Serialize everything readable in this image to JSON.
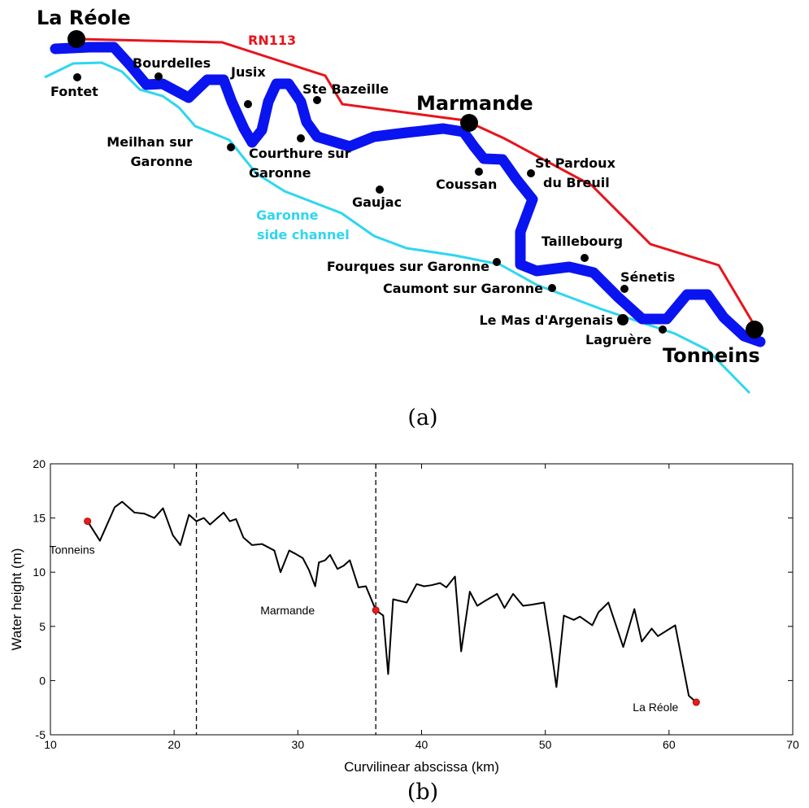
{
  "map": {
    "places": [
      {
        "label": [
          "La Réole"
        ]
      },
      {
        "label": [
          "Fontet"
        ]
      },
      {
        "label": [
          "Bourdelles"
        ]
      },
      {
        "label": [
          "Jusix"
        ]
      },
      {
        "label": [
          "Ste Bazeille"
        ]
      },
      {
        "label": [
          "Marmande"
        ]
      },
      {
        "label": [
          "Meilhan sur",
          "Garonne"
        ]
      },
      {
        "label": [
          "Courthure sur",
          "Garonne"
        ]
      },
      {
        "label": [
          "Gaujac"
        ]
      },
      {
        "label": [
          "Coussan"
        ]
      },
      {
        "label": [
          "St Pardoux",
          "du Breuil"
        ]
      },
      {
        "label": [
          "Taillebourg"
        ]
      },
      {
        "label": [
          "Sénetis"
        ]
      },
      {
        "label": [
          "Fourques sur Garonne"
        ]
      },
      {
        "label": [
          "Caumont sur Garonne"
        ]
      },
      {
        "label": [
          "Le Mas d'Argenais"
        ]
      },
      {
        "label": [
          "Lagruère"
        ]
      },
      {
        "label": [
          "Tonneins"
        ]
      }
    ],
    "road_label": "RN113",
    "channel_label": [
      "Garonne",
      "side channel"
    ]
  },
  "captions": [
    "(a)",
    "(b)"
  ],
  "chart_data": {
    "type": "line",
    "x_label": "Curvilinear abscissa (km)",
    "y_label": "Water height (m)",
    "xlim": [
      10,
      70
    ],
    "ylim": [
      -5,
      20
    ],
    "xticks": [
      10,
      20,
      30,
      40,
      50,
      60,
      70
    ],
    "yticks": [
      -5,
      0,
      5,
      10,
      15,
      20
    ],
    "x": [
      13.0,
      14.0,
      15.2,
      15.8,
      16.8,
      17.6,
      18.4,
      19.1,
      19.9,
      20.5,
      21.2,
      21.8,
      22.4,
      22.9,
      23.4,
      24.0,
      24.5,
      25.0,
      25.6,
      26.3,
      27.1,
      27.6,
      28.1,
      28.6,
      29.3,
      29.8,
      30.4,
      30.9,
      31.4,
      31.7,
      32.2,
      32.6,
      33.2,
      33.7,
      34.2,
      34.9,
      35.5,
      36.3,
      36.9,
      37.3,
      37.7,
      38.8,
      39.6,
      40.2,
      40.8,
      41.5,
      42.0,
      42.7,
      43.2,
      43.9,
      44.5,
      45.2,
      46.1,
      46.7,
      47.4,
      48.2,
      48.9,
      49.9,
      50.4,
      50.9,
      51.5,
      52.3,
      52.8,
      53.8,
      54.3,
      55.1,
      56.3,
      57.2,
      57.8,
      58.6,
      59.1,
      60.5,
      61.6,
      62.2
    ],
    "series": [
      {
        "color": "#000000",
        "values": [
          14.7,
          12.9,
          16.0,
          16.5,
          15.5,
          15.4,
          15.0,
          15.9,
          13.4,
          12.5,
          15.3,
          14.7,
          15.0,
          14.4,
          14.9,
          15.5,
          14.7,
          14.9,
          13.2,
          12.5,
          12.6,
          12.3,
          12.0,
          10.0,
          12.0,
          11.7,
          11.3,
          10.2,
          8.7,
          10.9,
          11.1,
          11.6,
          10.3,
          10.6,
          11.1,
          8.6,
          8.7,
          6.5,
          6.0,
          0.6,
          7.5,
          7.2,
          8.9,
          8.7,
          8.8,
          9.0,
          8.6,
          9.6,
          2.7,
          8.2,
          6.9,
          7.4,
          8.0,
          6.7,
          8.0,
          6.9,
          7.0,
          7.2,
          3.5,
          -0.6,
          6.0,
          5.6,
          5.9,
          5.1,
          6.3,
          7.2,
          3.1,
          6.6,
          3.6,
          4.8,
          4.1,
          5.1,
          -1.4,
          -2.0
        ]
      }
    ],
    "vlines": [
      21.8,
      36.3
    ],
    "highlight": {
      "x": [
        13.0,
        36.3,
        62.2
      ],
      "y": [
        14.7,
        6.5,
        -2.0
      ],
      "labels": [
        "Tonneins",
        "Marmande",
        "La Réole"
      ],
      "color": "#e0201b"
    }
  }
}
